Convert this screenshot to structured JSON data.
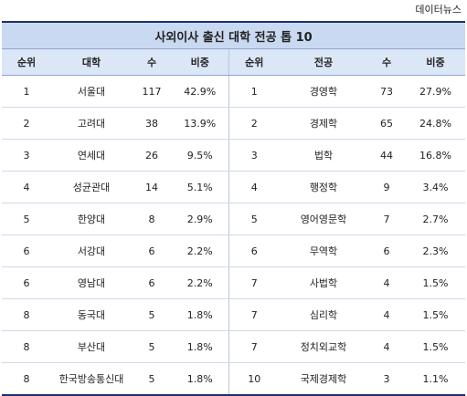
{
  "source": "데이터뉴스",
  "title": "사외이사 출신 대학 전공 톱 10",
  "headers": {
    "left": [
      "순위",
      "대학",
      "수",
      "비중"
    ],
    "right": [
      "순위",
      "전공",
      "수",
      "비중"
    ]
  },
  "left_rows": [
    [
      "1",
      "서울대",
      "117",
      "42.9%"
    ],
    [
      "2",
      "고려대",
      "38",
      "13.9%"
    ],
    [
      "3",
      "연세대",
      "26",
      "9.5%"
    ],
    [
      "4",
      "성균관대",
      "14",
      "5.1%"
    ],
    [
      "5",
      "한양대",
      "8",
      "2.9%"
    ],
    [
      "6",
      "서강대",
      "6",
      "2.2%"
    ],
    [
      "6",
      "영남대",
      "6",
      "2.2%"
    ],
    [
      "8",
      "동국대",
      "5",
      "1.8%"
    ],
    [
      "8",
      "부산대",
      "5",
      "1.8%"
    ],
    [
      "8",
      "한국방송통신대",
      "5",
      "1.8%"
    ]
  ],
  "right_rows": [
    [
      "1",
      "경영학",
      "73",
      "27.9%"
    ],
    [
      "2",
      "경제학",
      "65",
      "24.8%"
    ],
    [
      "3",
      "법학",
      "44",
      "16.8%"
    ],
    [
      "4",
      "행정학",
      "9",
      "3.4%"
    ],
    [
      "5",
      "영어영문학",
      "7",
      "2.7%"
    ],
    [
      "6",
      "무역학",
      "6",
      "2.3%"
    ],
    [
      "7",
      "사법학",
      "4",
      "1.5%"
    ],
    [
      "7",
      "심리학",
      "4",
      "1.5%"
    ],
    [
      "7",
      "정치외교학",
      "4",
      "1.5%"
    ],
    [
      "10",
      "국제경제학",
      "3",
      "1.1%"
    ]
  ]
}
